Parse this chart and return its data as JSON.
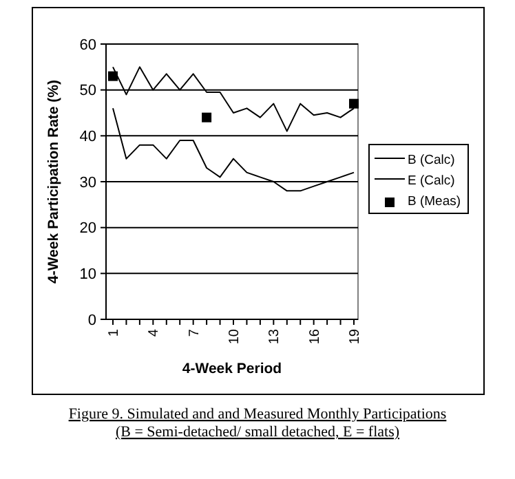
{
  "chart_data": {
    "type": "line",
    "xlabel": "4-Week Period",
    "ylabel": "4-Week Participation Rate (%)",
    "categories": [
      "1",
      null,
      null,
      "4",
      null,
      null,
      "7",
      null,
      null,
      "10",
      null,
      null,
      "13",
      null,
      null,
      "16",
      null,
      null,
      "19"
    ],
    "ylim": [
      0,
      60
    ],
    "yticks": [
      0,
      10,
      20,
      30,
      40,
      50,
      60
    ],
    "grid": "y",
    "legend": "right",
    "series": [
      {
        "name": "B (Calc)",
        "color": "#000000",
        "marker": "none",
        "values": [
          55,
          49,
          55,
          50,
          53.5,
          50,
          53.5,
          49.5,
          49.5,
          45,
          46,
          44,
          47,
          41,
          47,
          44.5,
          45,
          44,
          46
        ]
      },
      {
        "name": "E (Calc)",
        "color": "#000000",
        "marker": "none",
        "values": [
          46,
          35,
          38,
          38,
          35,
          39,
          39,
          33,
          31,
          35,
          32,
          31,
          30,
          28,
          28,
          29,
          30,
          31,
          32
        ]
      },
      {
        "name": "B (Meas)",
        "type": "scatter",
        "color": "#000000",
        "marker": "square",
        "values": [
          53,
          null,
          null,
          null,
          null,
          null,
          null,
          44,
          null,
          null,
          null,
          null,
          null,
          null,
          null,
          null,
          null,
          null,
          47
        ]
      }
    ],
    "annotations": [
      "Figure 9.  Simulated and and Measured Monthly Participations",
      "(B = Semi-detached/ small detached, E = flats)"
    ]
  }
}
